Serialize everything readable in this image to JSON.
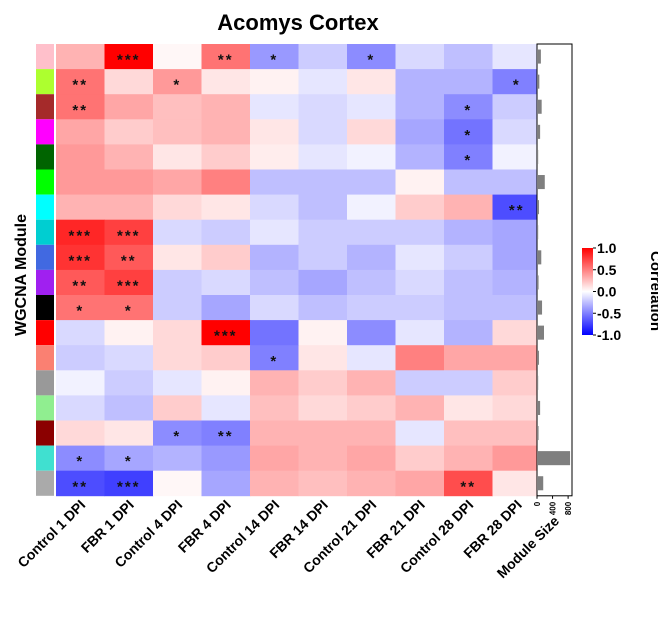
{
  "chart_data": {
    "type": "heatmap",
    "title": "Acomys Cortex",
    "ylabel": "WGCNA Module",
    "x_categories": [
      "Control 1 DPI",
      "FBR 1 DPI",
      "Control 4 DPI",
      "FBR 4 DPI",
      "Control 14 DPI",
      "FBR 14 DPI",
      "Control 21 DPI",
      "FBR 21 DPI",
      "Control 28 DPI",
      "FBR 28 DPI"
    ],
    "module_colors": [
      "#ffc0cb",
      "#adff2f",
      "#a52a2a",
      "#ff00ff",
      "#006400",
      "#00ff00",
      "#00ffff",
      "#00ced1",
      "#4169e1",
      "#a020f0",
      "#000000",
      "#ff0000",
      "#fa8072",
      "#999999",
      "#90ee90",
      "#8b0000",
      "#40e0d0",
      "#aaaaaa"
    ],
    "values": [
      [
        0.3,
        1.0,
        0.03,
        0.55,
        -0.4,
        -0.2,
        -0.45,
        -0.15,
        -0.25,
        -0.1
      ],
      [
        0.55,
        0.15,
        0.4,
        0.1,
        0.05,
        -0.1,
        0.1,
        -0.3,
        -0.3,
        -0.5
      ],
      [
        0.55,
        0.35,
        0.25,
        0.3,
        -0.1,
        -0.15,
        -0.1,
        -0.3,
        -0.45,
        -0.2
      ],
      [
        0.35,
        0.2,
        0.25,
        0.3,
        0.1,
        -0.15,
        0.15,
        -0.35,
        -0.55,
        -0.15
      ],
      [
        0.4,
        0.3,
        0.1,
        0.2,
        0.07,
        -0.1,
        -0.05,
        -0.3,
        -0.5,
        -0.05
      ],
      [
        0.4,
        0.4,
        0.35,
        0.5,
        -0.25,
        -0.25,
        -0.25,
        0.05,
        -0.25,
        -0.25
      ],
      [
        0.3,
        0.3,
        0.15,
        0.1,
        -0.15,
        -0.25,
        -0.05,
        0.2,
        0.3,
        -0.7
      ],
      [
        0.85,
        0.75,
        -0.15,
        -0.2,
        -0.1,
        -0.2,
        -0.2,
        -0.2,
        -0.3,
        -0.35
      ],
      [
        0.8,
        0.65,
        0.1,
        0.2,
        -0.3,
        -0.2,
        -0.3,
        -0.1,
        -0.2,
        -0.35
      ],
      [
        0.65,
        0.75,
        -0.2,
        -0.15,
        -0.25,
        -0.35,
        -0.25,
        -0.15,
        -0.25,
        -0.3
      ],
      [
        0.55,
        0.55,
        -0.2,
        -0.35,
        -0.15,
        -0.25,
        -0.2,
        -0.2,
        -0.25,
        -0.25
      ],
      [
        -0.15,
        0.05,
        0.15,
        1.0,
        -0.55,
        0.05,
        -0.45,
        -0.1,
        -0.3,
        0.15
      ],
      [
        -0.2,
        -0.15,
        0.15,
        0.2,
        -0.5,
        0.1,
        -0.1,
        0.5,
        0.35,
        0.35
      ],
      [
        -0.05,
        -0.2,
        -0.1,
        0.05,
        0.3,
        0.2,
        0.3,
        -0.2,
        -0.2,
        0.2
      ],
      [
        -0.15,
        -0.25,
        0.2,
        -0.1,
        0.25,
        0.15,
        0.2,
        0.3,
        0.1,
        0.15
      ],
      [
        0.15,
        0.1,
        -0.45,
        -0.5,
        0.3,
        0.3,
        0.3,
        -0.1,
        0.25,
        0.25
      ],
      [
        -0.45,
        -0.35,
        -0.3,
        -0.4,
        0.35,
        0.3,
        0.35,
        0.2,
        0.3,
        0.4
      ],
      [
        -0.7,
        -0.75,
        0.03,
        -0.35,
        0.3,
        0.25,
        0.3,
        0.35,
        0.7,
        0.1
      ]
    ],
    "significance": [
      [
        "",
        "***",
        "",
        "**",
        "*",
        "",
        "*",
        "",
        "",
        ""
      ],
      [
        "**",
        "",
        "*",
        "",
        "",
        "",
        "",
        "",
        "",
        "*"
      ],
      [
        "**",
        "",
        "",
        "",
        "",
        "",
        "",
        "",
        "*",
        ""
      ],
      [
        "",
        "",
        "",
        "",
        "",
        "",
        "",
        "",
        "*",
        ""
      ],
      [
        "",
        "",
        "",
        "",
        "",
        "",
        "",
        "",
        "*",
        ""
      ],
      [
        "",
        "",
        "",
        "",
        "",
        "",
        "",
        "",
        "",
        ""
      ],
      [
        "",
        "",
        "",
        "",
        "",
        "",
        "",
        "",
        "",
        "**"
      ],
      [
        "***",
        "***",
        "",
        "",
        "",
        "",
        "",
        "",
        "",
        ""
      ],
      [
        "***",
        "**",
        "",
        "",
        "",
        "",
        "",
        "",
        "",
        ""
      ],
      [
        "**",
        "***",
        "",
        "",
        "",
        "",
        "",
        "",
        "",
        ""
      ],
      [
        "*",
        "*",
        "",
        "",
        "",
        "",
        "",
        "",
        "",
        ""
      ],
      [
        "",
        "",
        "",
        "***",
        "",
        "",
        "",
        "",
        "",
        ""
      ],
      [
        "",
        "",
        "",
        "",
        "*",
        "",
        "",
        "",
        "",
        ""
      ],
      [
        "",
        "",
        "",
        "",
        "",
        "",
        "",
        "",
        "",
        ""
      ],
      [
        "",
        "",
        "",
        "",
        "",
        "",
        "",
        "",
        "",
        ""
      ],
      [
        "",
        "",
        "*",
        "**",
        "",
        "",
        "",
        "",
        "",
        ""
      ],
      [
        "*",
        "*",
        "",
        "",
        "",
        "",
        "",
        "",
        "",
        ""
      ],
      [
        "**",
        "***",
        "",
        "",
        "",
        "",
        "",
        "",
        "**",
        ""
      ]
    ],
    "module_size": {
      "label": "Module Size",
      "values": [
        100,
        60,
        120,
        80,
        30,
        200,
        50,
        30,
        110,
        40,
        130,
        180,
        50,
        30,
        80,
        40,
        850,
        160
      ],
      "ticks": [
        "0",
        "400",
        "800"
      ],
      "xlim": [
        0,
        900
      ]
    },
    "legend": {
      "title": "Correlation",
      "ticks": [
        "1.0",
        "0.5",
        "0.0",
        "-0.5",
        "-1.0"
      ],
      "range": [
        -1.0,
        1.0
      ],
      "colors": {
        "high": "#ff0000",
        "mid": "#ffffff",
        "low": "#0000ff"
      }
    }
  }
}
